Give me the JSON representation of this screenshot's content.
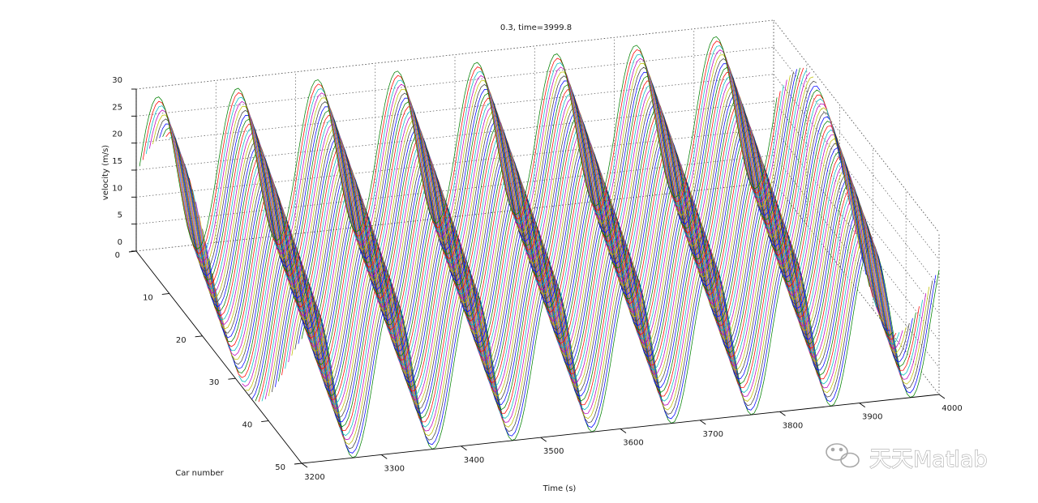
{
  "watermark": {
    "text": "天天Matlab"
  },
  "chart_data": {
    "type": "waterfall-3d",
    "title": "0.3, time=3999.8",
    "xlabel": "Time (s)",
    "ylabel": "Car number",
    "zlabel": "velocity (m/s)",
    "xlim": [
      3200,
      4000
    ],
    "ylim": [
      0,
      50
    ],
    "zlim": [
      0,
      30
    ],
    "x_ticks": [
      3200,
      3300,
      3400,
      3500,
      3600,
      3700,
      3800,
      3900,
      4000
    ],
    "y_ticks": [
      0,
      10,
      20,
      30,
      40,
      50
    ],
    "z_ticks": [
      0,
      5,
      10,
      15,
      20,
      25,
      30
    ],
    "grid": true,
    "legend": "none",
    "series_count": 50,
    "series_colors": [
      "#0000ff",
      "#008000",
      "#ff0000",
      "#00bfbf",
      "#bf00bf",
      "#bfbf00",
      "#404040"
    ],
    "wave": {
      "period_s": 100,
      "v_min": 0,
      "v_max": 29,
      "phase_shift_per_car_s": 2.2
    }
  }
}
